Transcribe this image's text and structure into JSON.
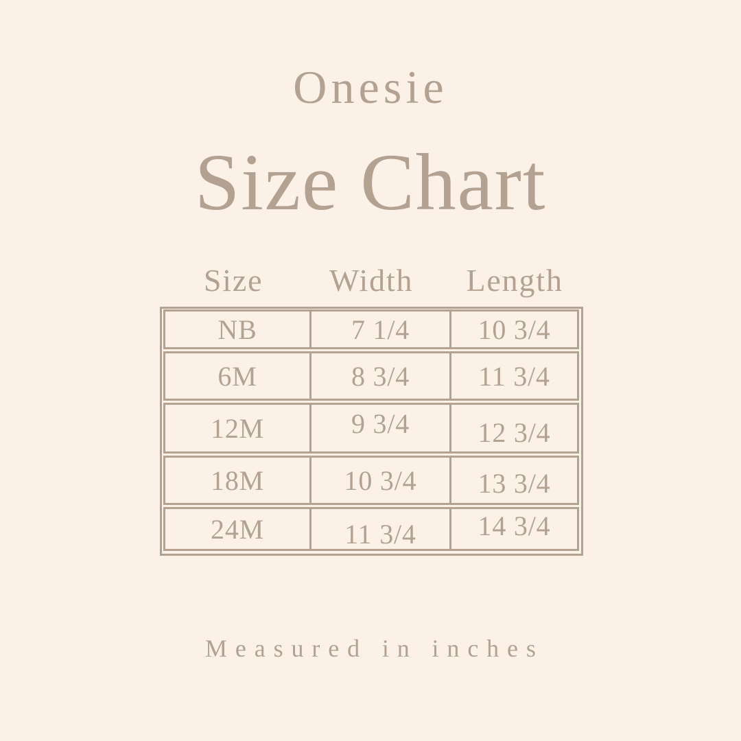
{
  "page": {
    "background_color": "#fbf1e7",
    "accent_color": "#b3a192"
  },
  "header": {
    "subtitle": "Onesie",
    "title": "Size Chart"
  },
  "table": {
    "columns": [
      "Size",
      "Width",
      "Length"
    ],
    "rows": [
      [
        "NB",
        "7 1/4",
        "10 3/4"
      ],
      [
        "6M",
        "8 3/4",
        "11 3/4"
      ],
      [
        "12M",
        "9 3/4",
        "12 3/4"
      ],
      [
        "18M",
        "10 3/4",
        "13 3/4"
      ],
      [
        "24M",
        "11 3/4",
        "14 3/4"
      ]
    ]
  },
  "footer": {
    "note": "Measured in inches"
  },
  "chart_data": {
    "type": "table",
    "title": "Onesie Size Chart",
    "columns": [
      "Size",
      "Width",
      "Length"
    ],
    "units": "inches",
    "rows": [
      {
        "size": "NB",
        "width": 7.25,
        "length": 10.75
      },
      {
        "size": "6M",
        "width": 8.75,
        "length": 11.75
      },
      {
        "size": "12M",
        "width": 9.75,
        "length": 12.75
      },
      {
        "size": "18M",
        "width": 10.75,
        "length": 13.75
      },
      {
        "size": "24M",
        "width": 11.75,
        "length": 14.75
      }
    ],
    "note": "Measured in inches"
  }
}
